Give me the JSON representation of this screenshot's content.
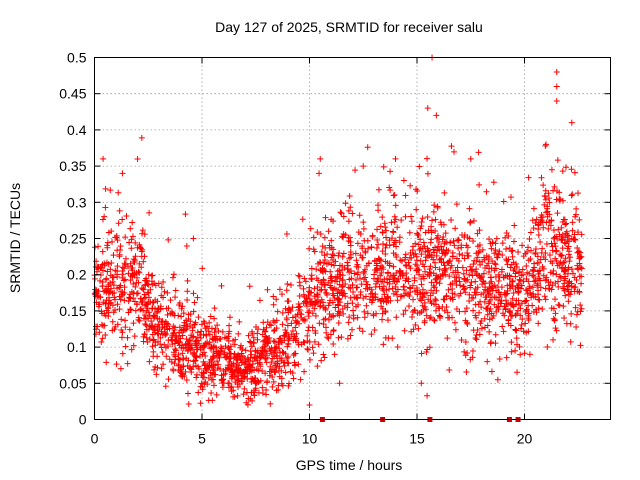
{
  "chart_data": {
    "type": "scatter",
    "title": "Day 127 of 2025, SRMTID for receiver salu",
    "xlabel": "GPS time / hours",
    "ylabel": "SRMTID / TECUs",
    "xlim": [
      0,
      24
    ],
    "ylim": [
      0,
      0.5
    ],
    "xticks": [
      0,
      5,
      10,
      15,
      20
    ],
    "xtick_labels": [
      "0",
      "5",
      "10",
      "15",
      "20"
    ],
    "yticks": [
      0,
      0.05,
      0.1,
      0.15,
      0.2,
      0.25,
      0.3,
      0.35,
      0.4,
      0.45,
      0.5
    ],
    "ytick_labels": [
      "0",
      "0.05",
      "0.1",
      "0.15",
      "0.2",
      "0.25",
      "0.3",
      "0.35",
      "0.4",
      "0.45",
      "0.5"
    ],
    "grid": true,
    "marker": "+",
    "color": "#ff0000",
    "density_profile": {
      "note": "approximate median level and spread of the point cloud (hours, TECU)",
      "hours": [
        0,
        1,
        2,
        3,
        4,
        5,
        6,
        7,
        8,
        9,
        10,
        11,
        12,
        13,
        14,
        15,
        16,
        17,
        18,
        19,
        20,
        21,
        22,
        22.7
      ],
      "median": [
        0.17,
        0.18,
        0.19,
        0.12,
        0.11,
        0.09,
        0.08,
        0.06,
        0.09,
        0.11,
        0.16,
        0.19,
        0.2,
        0.2,
        0.2,
        0.2,
        0.21,
        0.2,
        0.19,
        0.17,
        0.17,
        0.24,
        0.22,
        0.2
      ],
      "spread": [
        0.05,
        0.06,
        0.05,
        0.04,
        0.04,
        0.035,
        0.03,
        0.025,
        0.035,
        0.04,
        0.05,
        0.05,
        0.05,
        0.05,
        0.055,
        0.06,
        0.06,
        0.055,
        0.05,
        0.05,
        0.05,
        0.07,
        0.06,
        0.06
      ]
    },
    "outliers": [
      {
        "x": 0.4,
        "y": 0.36
      },
      {
        "x": 1.3,
        "y": 0.34
      },
      {
        "x": 4.6,
        "y": 0.25
      },
      {
        "x": 10.5,
        "y": 0.36
      },
      {
        "x": 12.5,
        "y": 0.35
      },
      {
        "x": 14.0,
        "y": 0.36
      },
      {
        "x": 15.5,
        "y": 0.43
      },
      {
        "x": 15.7,
        "y": 0.5
      },
      {
        "x": 15.9,
        "y": 0.42
      },
      {
        "x": 17.5,
        "y": 0.36
      },
      {
        "x": 21.0,
        "y": 0.38
      },
      {
        "x": 21.5,
        "y": 0.48
      },
      {
        "x": 21.5,
        "y": 0.46
      },
      {
        "x": 21.5,
        "y": 0.44
      },
      {
        "x": 22.2,
        "y": 0.41
      },
      {
        "x": 10.0,
        "y": 0.02
      },
      {
        "x": 11.4,
        "y": 0.05
      },
      {
        "x": 15.2,
        "y": 0.05
      }
    ],
    "gap_markers_x": [
      10.6,
      13.4,
      15.6,
      19.3,
      19.7
    ],
    "point_count_approx": 2600
  }
}
